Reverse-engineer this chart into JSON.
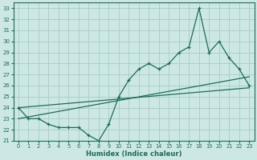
{
  "xlabel": "Humidex (Indice chaleur)",
  "bg_color": "#cde8e4",
  "grid_color": "#a8d0cc",
  "line_color": "#1a6b5a",
  "xlim": [
    -0.5,
    23.5
  ],
  "ylim": [
    21,
    33.5
  ],
  "yticks": [
    21,
    22,
    23,
    24,
    25,
    26,
    27,
    28,
    29,
    30,
    31,
    32,
    33
  ],
  "xticks": [
    0,
    1,
    2,
    3,
    4,
    5,
    6,
    7,
    8,
    9,
    10,
    11,
    12,
    13,
    14,
    15,
    16,
    17,
    18,
    19,
    20,
    21,
    22,
    23
  ],
  "line1_x": [
    0,
    1,
    2,
    3,
    4,
    5,
    6,
    7,
    8,
    9,
    10,
    11,
    12,
    13,
    14,
    15,
    16,
    17,
    18,
    19,
    20,
    21,
    22,
    23
  ],
  "line1_y": [
    24,
    23,
    23,
    22.5,
    22.2,
    22.2,
    22.2,
    21.5,
    21,
    22.5,
    25,
    26.5,
    27.5,
    28,
    27.5,
    28,
    29,
    29.5,
    33,
    29,
    30,
    28.5,
    27.5,
    26
  ],
  "line2_x": [
    0,
    23
  ],
  "line2_y": [
    23.0,
    26.8
  ],
  "line3_x": [
    0,
    23
  ],
  "line3_y": [
    24.0,
    25.8
  ]
}
